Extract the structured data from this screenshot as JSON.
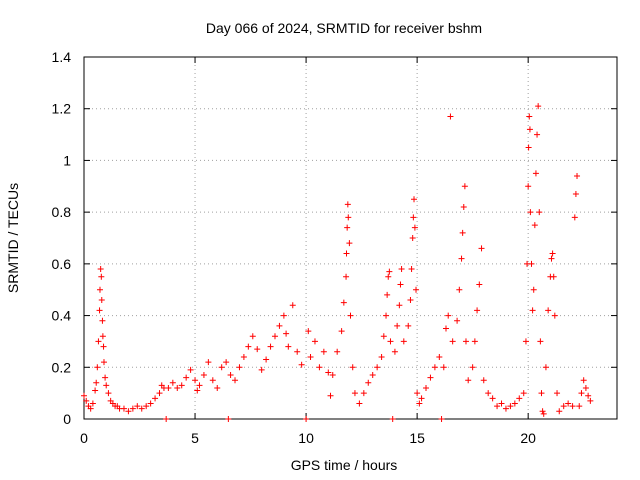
{
  "chart_data": {
    "type": "scatter",
    "title": "Day 066 of 2024, SRMTID for receiver bshm",
    "xlabel": "GPS time / hours",
    "ylabel": "SRMTID / TECUs",
    "xlim": [
      0,
      24
    ],
    "ylim": [
      0,
      1.4
    ],
    "xticks": [
      0,
      5,
      10,
      15,
      20
    ],
    "xtick_labels": [
      "0",
      "5",
      "10",
      "15",
      "20"
    ],
    "yticks": [
      0,
      0.2,
      0.4,
      0.6,
      0.8,
      1,
      1.2,
      1.4
    ],
    "ytick_labels": [
      "0",
      "0.2",
      "0.4",
      "0.6",
      "0.8",
      "1",
      "1.2",
      "1.4"
    ],
    "grid": true,
    "marker": "+",
    "color": "#ff0000",
    "series": [
      {
        "name": "SRMTID",
        "points": [
          [
            0.0,
            0.09
          ],
          [
            0.1,
            0.07
          ],
          [
            0.2,
            0.05
          ],
          [
            0.3,
            0.04
          ],
          [
            0.4,
            0.06
          ],
          [
            0.5,
            0.11
          ],
          [
            0.55,
            0.14
          ],
          [
            0.6,
            0.2
          ],
          [
            0.65,
            0.3
          ],
          [
            0.7,
            0.42
          ],
          [
            0.72,
            0.5
          ],
          [
            0.75,
            0.58
          ],
          [
            0.78,
            0.55
          ],
          [
            0.8,
            0.46
          ],
          [
            0.83,
            0.38
          ],
          [
            0.85,
            0.32
          ],
          [
            0.88,
            0.28
          ],
          [
            0.9,
            0.22
          ],
          [
            0.95,
            0.16
          ],
          [
            1.0,
            0.13
          ],
          [
            1.1,
            0.1
          ],
          [
            1.2,
            0.07
          ],
          [
            1.3,
            0.06
          ],
          [
            1.4,
            0.05
          ],
          [
            1.5,
            0.05
          ],
          [
            1.6,
            0.04
          ],
          [
            1.8,
            0.04
          ],
          [
            2.0,
            0.03
          ],
          [
            2.2,
            0.04
          ],
          [
            2.4,
            0.05
          ],
          [
            2.6,
            0.04
          ],
          [
            2.8,
            0.05
          ],
          [
            3.0,
            0.06
          ],
          [
            3.2,
            0.08
          ],
          [
            3.4,
            0.1
          ],
          [
            3.5,
            0.13
          ],
          [
            3.6,
            0.12
          ],
          [
            3.7,
            0.0
          ],
          [
            3.8,
            0.12
          ],
          [
            4.0,
            0.14
          ],
          [
            4.2,
            0.12
          ],
          [
            4.4,
            0.13
          ],
          [
            4.6,
            0.16
          ],
          [
            4.8,
            0.19
          ],
          [
            5.0,
            0.15
          ],
          [
            5.1,
            0.11
          ],
          [
            5.2,
            0.13
          ],
          [
            5.4,
            0.17
          ],
          [
            5.6,
            0.22
          ],
          [
            5.8,
            0.15
          ],
          [
            6.0,
            0.12
          ],
          [
            6.2,
            0.2
          ],
          [
            6.4,
            0.22
          ],
          [
            6.5,
            0.0
          ],
          [
            6.6,
            0.17
          ],
          [
            6.8,
            0.15
          ],
          [
            7.0,
            0.2
          ],
          [
            7.2,
            0.24
          ],
          [
            7.4,
            0.28
          ],
          [
            7.6,
            0.32
          ],
          [
            7.8,
            0.27
          ],
          [
            8.0,
            0.19
          ],
          [
            8.2,
            0.23
          ],
          [
            8.4,
            0.28
          ],
          [
            8.6,
            0.32
          ],
          [
            8.8,
            0.36
          ],
          [
            9.0,
            0.4
          ],
          [
            9.1,
            0.33
          ],
          [
            9.2,
            0.28
          ],
          [
            9.4,
            0.44
          ],
          [
            9.6,
            0.26
          ],
          [
            9.8,
            0.21
          ],
          [
            10.0,
            0.0
          ],
          [
            10.1,
            0.34
          ],
          [
            10.2,
            0.24
          ],
          [
            10.4,
            0.3
          ],
          [
            10.6,
            0.2
          ],
          [
            10.8,
            0.26
          ],
          [
            11.0,
            0.18
          ],
          [
            11.1,
            0.09
          ],
          [
            11.2,
            0.17
          ],
          [
            11.4,
            0.26
          ],
          [
            11.6,
            0.34
          ],
          [
            11.7,
            0.45
          ],
          [
            11.8,
            0.55
          ],
          [
            11.82,
            0.64
          ],
          [
            11.85,
            0.74
          ],
          [
            11.88,
            0.83
          ],
          [
            11.9,
            0.78
          ],
          [
            11.95,
            0.68
          ],
          [
            12.0,
            0.4
          ],
          [
            12.1,
            0.2
          ],
          [
            12.2,
            0.1
          ],
          [
            12.4,
            0.06
          ],
          [
            12.6,
            0.1
          ],
          [
            12.8,
            0.14
          ],
          [
            13.0,
            0.17
          ],
          [
            13.2,
            0.2
          ],
          [
            13.4,
            0.24
          ],
          [
            13.5,
            0.32
          ],
          [
            13.6,
            0.4
          ],
          [
            13.65,
            0.48
          ],
          [
            13.7,
            0.55
          ],
          [
            13.75,
            0.57
          ],
          [
            13.8,
            0.3
          ],
          [
            13.9,
            0.0
          ],
          [
            14.0,
            0.26
          ],
          [
            14.1,
            0.36
          ],
          [
            14.2,
            0.44
          ],
          [
            14.25,
            0.52
          ],
          [
            14.3,
            0.58
          ],
          [
            14.4,
            0.3
          ],
          [
            14.6,
            0.36
          ],
          [
            14.7,
            0.46
          ],
          [
            14.75,
            0.58
          ],
          [
            14.8,
            0.7
          ],
          [
            14.83,
            0.78
          ],
          [
            14.86,
            0.85
          ],
          [
            14.9,
            0.74
          ],
          [
            14.95,
            0.5
          ],
          [
            15.0,
            0.1
          ],
          [
            15.1,
            0.06
          ],
          [
            15.2,
            0.08
          ],
          [
            15.4,
            0.12
          ],
          [
            15.6,
            0.16
          ],
          [
            15.8,
            0.2
          ],
          [
            16.0,
            0.24
          ],
          [
            16.1,
            0.0
          ],
          [
            16.2,
            0.2
          ],
          [
            16.3,
            0.35
          ],
          [
            16.4,
            0.4
          ],
          [
            16.5,
            1.17
          ],
          [
            16.6,
            0.3
          ],
          [
            16.8,
            0.38
          ],
          [
            16.9,
            0.5
          ],
          [
            17.0,
            0.62
          ],
          [
            17.05,
            0.72
          ],
          [
            17.1,
            0.82
          ],
          [
            17.15,
            0.9
          ],
          [
            17.2,
            0.3
          ],
          [
            17.3,
            0.15
          ],
          [
            17.5,
            0.2
          ],
          [
            17.6,
            0.3
          ],
          [
            17.7,
            0.42
          ],
          [
            17.8,
            0.52
          ],
          [
            17.9,
            0.66
          ],
          [
            18.0,
            0.15
          ],
          [
            18.2,
            0.1
          ],
          [
            18.4,
            0.08
          ],
          [
            18.6,
            0.05
          ],
          [
            18.8,
            0.06
          ],
          [
            19.0,
            0.04
          ],
          [
            19.2,
            0.05
          ],
          [
            19.4,
            0.06
          ],
          [
            19.6,
            0.08
          ],
          [
            19.8,
            0.1
          ],
          [
            19.9,
            0.3
          ],
          [
            19.95,
            0.6
          ],
          [
            20.0,
            0.9
          ],
          [
            20.02,
            1.05
          ],
          [
            20.05,
            1.17
          ],
          [
            20.08,
            1.12
          ],
          [
            20.1,
            0.8
          ],
          [
            20.15,
            0.6
          ],
          [
            20.2,
            0.42
          ],
          [
            20.25,
            0.5
          ],
          [
            20.3,
            0.75
          ],
          [
            20.35,
            0.95
          ],
          [
            20.4,
            1.1
          ],
          [
            20.45,
            1.21
          ],
          [
            20.5,
            0.8
          ],
          [
            20.55,
            0.3
          ],
          [
            20.6,
            0.1
          ],
          [
            20.65,
            0.03
          ],
          [
            20.7,
            0.02
          ],
          [
            20.8,
            0.2
          ],
          [
            20.9,
            0.42
          ],
          [
            21.0,
            0.55
          ],
          [
            21.05,
            0.62
          ],
          [
            21.1,
            0.64
          ],
          [
            21.15,
            0.55
          ],
          [
            21.2,
            0.4
          ],
          [
            21.3,
            0.1
          ],
          [
            21.4,
            0.03
          ],
          [
            21.6,
            0.05
          ],
          [
            21.8,
            0.06
          ],
          [
            22.0,
            0.05
          ],
          [
            22.1,
            0.78
          ],
          [
            22.15,
            0.87
          ],
          [
            22.2,
            0.94
          ],
          [
            22.3,
            0.05
          ],
          [
            22.4,
            0.1
          ],
          [
            22.5,
            0.15
          ],
          [
            22.6,
            0.12
          ],
          [
            22.7,
            0.09
          ],
          [
            22.8,
            0.07
          ]
        ]
      }
    ]
  }
}
